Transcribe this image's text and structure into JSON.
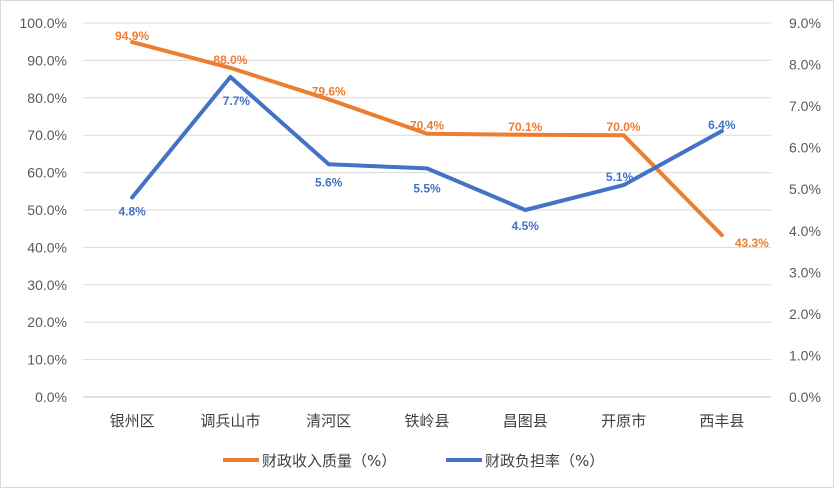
{
  "chart_data": {
    "type": "line",
    "categories": [
      "银州区",
      "调兵山市",
      "清河区",
      "铁岭县",
      "昌图县",
      "开原市",
      "西丰县"
    ],
    "series": [
      {
        "name": "财政收入质量（%）",
        "axis": "left",
        "color": "#ED7D31",
        "values": [
          94.9,
          88.0,
          79.6,
          70.4,
          70.1,
          70.0,
          43.3
        ],
        "labels": [
          "94.9%",
          "88.0%",
          "79.6%",
          "70.4%",
          "70.1%",
          "70.0%",
          "43.3%"
        ]
      },
      {
        "name": "财政负担率（%）",
        "axis": "right",
        "color": "#4472C4",
        "values": [
          4.8,
          7.7,
          5.6,
          5.5,
          4.5,
          5.1,
          6.4
        ],
        "labels": [
          "4.8%",
          "7.7%",
          "5.6%",
          "5.5%",
          "4.5%",
          "5.1%",
          "6.4%"
        ]
      }
    ],
    "y_left": {
      "range": [
        0,
        100
      ],
      "ticks": [
        "0.0%",
        "10.0%",
        "20.0%",
        "30.0%",
        "40.0%",
        "50.0%",
        "60.0%",
        "70.0%",
        "80.0%",
        "90.0%",
        "100.0%"
      ]
    },
    "y_right": {
      "range": [
        0,
        9
      ],
      "ticks": [
        "0.0%",
        "1.0%",
        "2.0%",
        "3.0%",
        "4.0%",
        "5.0%",
        "6.0%",
        "7.0%",
        "8.0%",
        "9.0%"
      ]
    },
    "grid": true,
    "legend_position": "bottom"
  }
}
